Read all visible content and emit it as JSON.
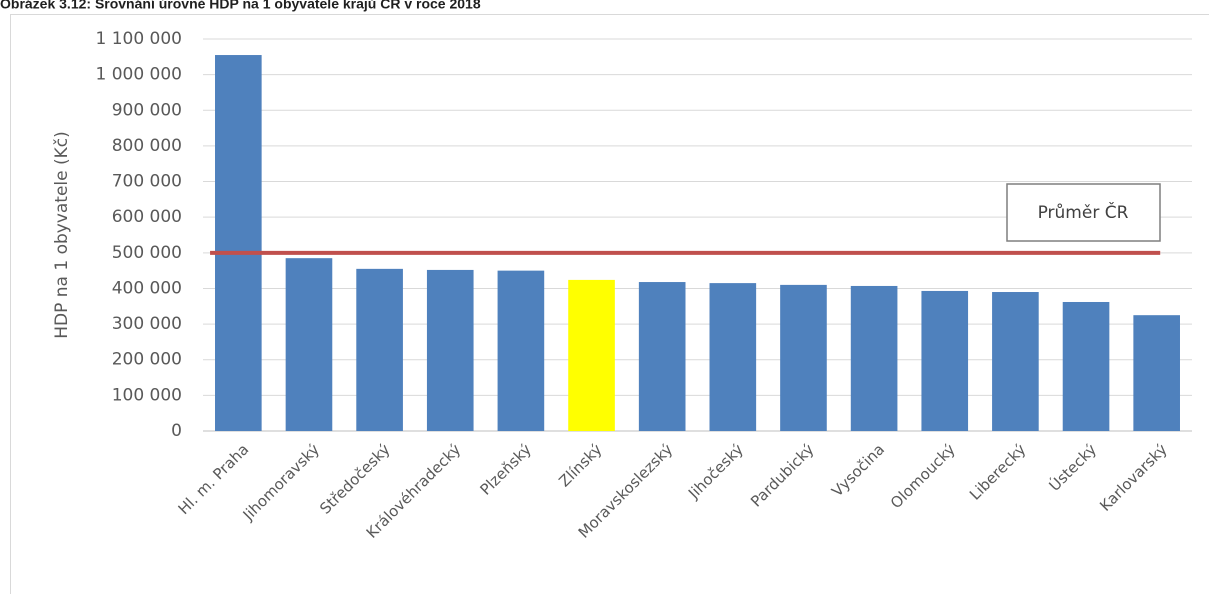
{
  "chart_data": {
    "type": "bar",
    "title": "Obrázek 3.12: Srovnání úrovně HDP na 1 obyvatele krajů ČR v roce 2018",
    "y_label": "HDP na 1 obyvatele (Kč)",
    "categories": [
      "Hl. m. Praha",
      "Jihomoravský",
      "Středočeský",
      "Královéhradecký",
      "Plzeňský",
      "Zlínský",
      "Moravskoslezský",
      "Jihočeský",
      "Pardubický",
      "Vysočina",
      "Olomoucký",
      "Liberecký",
      "Ústecký",
      "Karlovarský"
    ],
    "values": [
      1055000,
      485000,
      455000,
      452000,
      450000,
      424000,
      418000,
      415000,
      410000,
      407000,
      393000,
      390000,
      362000,
      325000
    ],
    "colors": [
      "#4f81bd",
      "#4f81bd",
      "#4f81bd",
      "#4f81bd",
      "#4f81bd",
      "#ffff00",
      "#4f81bd",
      "#4f81bd",
      "#4f81bd",
      "#4f81bd",
      "#4f81bd",
      "#4f81bd",
      "#4f81bd",
      "#4f81bd"
    ],
    "average": {
      "label": "Průměr ČR",
      "value": 500000,
      "color": "#c0504d"
    },
    "ylim": [
      0,
      1100000
    ],
    "yticks": [
      0,
      {
        "value": 100000,
        "label": "100 000"
      },
      {
        "value": 200000,
        "label": "200 000"
      },
      {
        "value": 300000,
        "label": "300 000"
      },
      {
        "value": 400000,
        "label": "400 000"
      },
      {
        "value": 500000,
        "label": "500 000"
      },
      {
        "value": 600000,
        "label": "600 000"
      },
      {
        "value": 700000,
        "label": "700 000"
      },
      {
        "value": 800000,
        "label": "800 000"
      },
      {
        "value": 900000,
        "label": "900 000"
      },
      {
        "value": 1000000,
        "label": "1 000 000"
      },
      {
        "value": 1100000,
        "label": "1 100 000"
      }
    ],
    "grid": true
  }
}
